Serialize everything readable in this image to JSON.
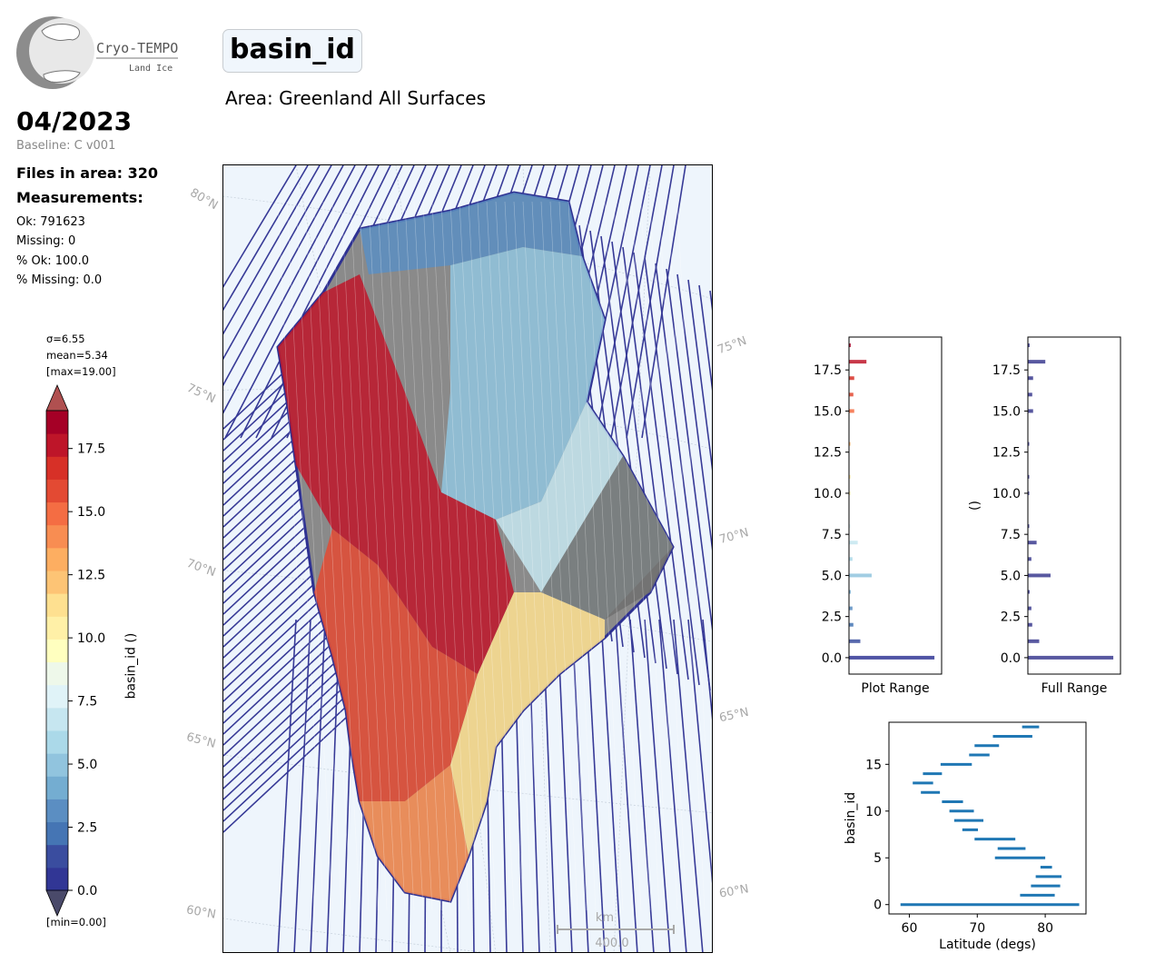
{
  "logo": {
    "brand": "Cryo-TEMPO",
    "subtitle": "Land Ice"
  },
  "header": {
    "date": "04/2023",
    "baseline": "Baseline: C v001",
    "files_in_area": "Files in area: 320",
    "measurements_title": "Measurements:",
    "ok": "Ok: 791623",
    "missing": "Missing: 0",
    "pct_ok": "% Ok: 100.0",
    "pct_missing": "% Missing: 0.0"
  },
  "title": "basin_id",
  "area": "Area: Greenland All Surfaces",
  "colorbar": {
    "sigma": "σ=6.55",
    "mean": "mean=5.34",
    "max": "[max=19.00]",
    "min": "[min=0.00]",
    "label": "basin_id ()",
    "ticks": [
      "0.0",
      "2.5",
      "5.0",
      "7.5",
      "10.0",
      "12.5",
      "15.0",
      "17.5"
    ],
    "colors": [
      "#313695",
      "#3a4d9f",
      "#4575b4",
      "#5b8ec2",
      "#74add1",
      "#91c4de",
      "#abd9e9",
      "#c6e6f0",
      "#e0f3f8",
      "#eef8ea",
      "#ffffbf",
      "#fff0a7",
      "#fee090",
      "#fdc475",
      "#fdae61",
      "#f88d52",
      "#f46d43",
      "#e34a33",
      "#d73027",
      "#be1529",
      "#a50026"
    ],
    "extend_colors": {
      "under": "#4a4a6a",
      "over": "#b05050"
    }
  },
  "map": {
    "lat_labels_left": [
      "80°N",
      "75°N",
      "70°N",
      "65°N",
      "60°N"
    ],
    "lat_labels_right": [
      "75°N",
      "70°N",
      "65°N",
      "60°N"
    ],
    "scalebar": {
      "unit": "km",
      "value": "400.0"
    },
    "colors": {
      "ocean": "#eef5fc",
      "ocean_track": "#2e3192",
      "land": "#8a8a8a"
    }
  },
  "chart_data": [
    {
      "type": "bar",
      "orientation": "horizontal",
      "xlabel": "Plot Range",
      "ylabel": "",
      "ylim": [
        -1,
        19.5
      ],
      "yticks": [
        "0.0",
        "2.5",
        "5.0",
        "7.5",
        "10.0",
        "12.5",
        "15.0",
        "17.5"
      ],
      "categories": [
        0,
        1,
        2,
        3,
        4,
        5,
        6,
        7,
        8,
        9,
        10,
        11,
        12,
        13,
        14,
        15,
        16,
        17,
        18,
        19
      ],
      "values": [
        0.98,
        0.13,
        0.05,
        0.04,
        0.02,
        0.26,
        0.04,
        0.1,
        0.01,
        0.0,
        0.01,
        0.01,
        0.0,
        0.01,
        0.0,
        0.06,
        0.05,
        0.06,
        0.2,
        0.02
      ]
    },
    {
      "type": "bar",
      "orientation": "horizontal",
      "xlabel": "Full Range",
      "ylabel": "()",
      "ylim": [
        -1,
        19.5
      ],
      "yticks": [
        "0.0",
        "2.5",
        "5.0",
        "7.5",
        "10.0",
        "12.5",
        "15.0",
        "17.5"
      ],
      "categories": [
        0,
        1,
        2,
        3,
        4,
        5,
        6,
        7,
        8,
        9,
        10,
        11,
        12,
        13,
        14,
        15,
        16,
        17,
        18,
        19
      ],
      "values": [
        0.98,
        0.13,
        0.05,
        0.04,
        0.02,
        0.26,
        0.04,
        0.1,
        0.01,
        0.0,
        0.01,
        0.01,
        0.0,
        0.01,
        0.0,
        0.06,
        0.05,
        0.06,
        0.2,
        0.02
      ]
    },
    {
      "type": "range",
      "xlabel": "Latitude (degs)",
      "ylabel": "basin_id",
      "xlim": [
        57,
        86
      ],
      "ylim": [
        -1,
        19.5
      ],
      "xticks": [
        "60",
        "70",
        "80"
      ],
      "yticks": [
        "0",
        "5",
        "10",
        "15"
      ],
      "series": [
        {
          "id": 0,
          "min": 58.7,
          "max": 85.0
        },
        {
          "id": 1,
          "min": 76.3,
          "max": 81.4
        },
        {
          "id": 2,
          "min": 77.9,
          "max": 82.2
        },
        {
          "id": 3,
          "min": 78.6,
          "max": 82.4
        },
        {
          "id": 4,
          "min": 79.3,
          "max": 81.0
        },
        {
          "id": 5,
          "min": 72.6,
          "max": 80.0
        },
        {
          "id": 6,
          "min": 73.0,
          "max": 77.1
        },
        {
          "id": 7,
          "min": 69.6,
          "max": 75.6
        },
        {
          "id": 8,
          "min": 67.8,
          "max": 70.1
        },
        {
          "id": 9,
          "min": 66.6,
          "max": 70.9
        },
        {
          "id": 10,
          "min": 65.9,
          "max": 69.5
        },
        {
          "id": 11,
          "min": 64.8,
          "max": 67.9
        },
        {
          "id": 12,
          "min": 61.7,
          "max": 64.5
        },
        {
          "id": 13,
          "min": 60.5,
          "max": 63.5
        },
        {
          "id": 14,
          "min": 62.0,
          "max": 64.8
        },
        {
          "id": 15,
          "min": 64.6,
          "max": 69.2
        },
        {
          "id": 16,
          "min": 68.8,
          "max": 71.8
        },
        {
          "id": 17,
          "min": 69.6,
          "max": 73.2
        },
        {
          "id": 18,
          "min": 72.3,
          "max": 78.1
        },
        {
          "id": 19,
          "min": 76.6,
          "max": 79.1
        }
      ],
      "color": "#1f77b4"
    }
  ]
}
